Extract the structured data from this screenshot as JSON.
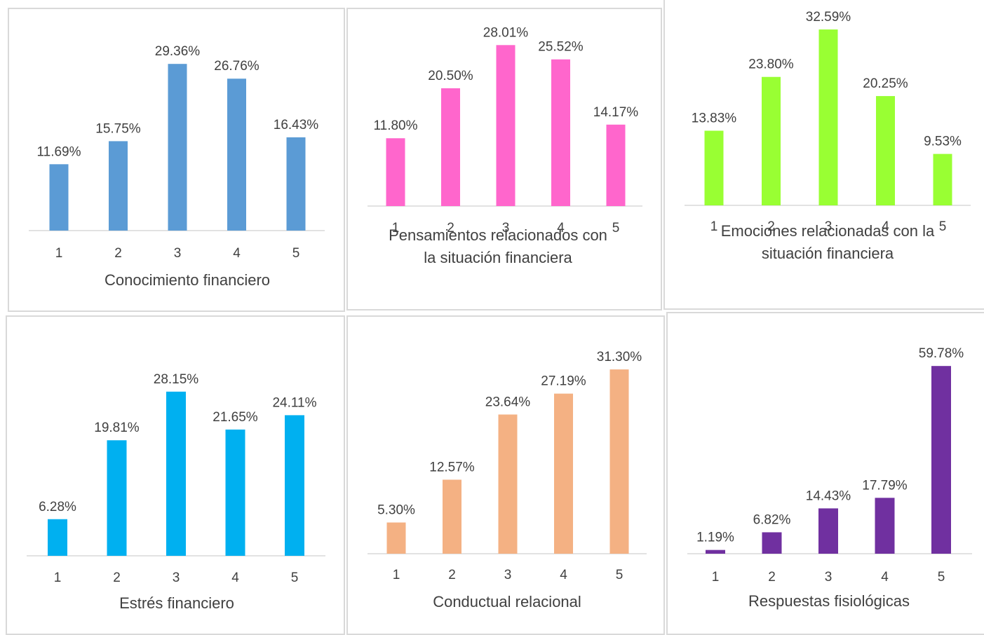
{
  "chart_data": [
    {
      "type": "bar",
      "xlabel": "Conocimiento financiero",
      "xlabel_lines": [
        "Conocimiento financiero"
      ],
      "categories": [
        "1",
        "2",
        "3",
        "4",
        "5"
      ],
      "values": [
        11.69,
        15.75,
        29.36,
        26.76,
        16.43
      ],
      "data_labels": [
        "11.69%",
        "15.75%",
        "29.36%",
        "26.76%",
        "16.43%"
      ],
      "color": "#5b9bd5",
      "grid": false,
      "legend": "none"
    },
    {
      "type": "bar",
      "xlabel": "Pensamientos relacionados con la situación financiera",
      "xlabel_lines": [
        "Pensamientos relacionados con",
        "la situación financiera"
      ],
      "categories": [
        "1",
        "2",
        "3",
        "4",
        "5"
      ],
      "values": [
        11.8,
        20.5,
        28.01,
        25.52,
        14.17
      ],
      "data_labels": [
        "11.80%",
        "20.50%",
        "28.01%",
        "25.52%",
        "14.17%"
      ],
      "color": "#ff66cc",
      "grid": false,
      "legend": "none"
    },
    {
      "type": "bar",
      "xlabel": "Emociones relacionadas con la situación financiera",
      "xlabel_lines": [
        "Emociones relacionadas con la",
        "situación financiera"
      ],
      "categories": [
        "1",
        "2",
        "3",
        "4",
        "5"
      ],
      "values": [
        13.83,
        23.8,
        32.59,
        20.25,
        9.53
      ],
      "data_labels": [
        "13.83%",
        "23.80%",
        "32.59%",
        "20.25%",
        "9.53%"
      ],
      "color": "#99ff33",
      "grid": false,
      "legend": "none"
    },
    {
      "type": "bar",
      "xlabel": "Estrés financiero",
      "xlabel_lines": [
        "Estrés financiero"
      ],
      "categories": [
        "1",
        "2",
        "3",
        "4",
        "5"
      ],
      "values": [
        6.28,
        19.81,
        28.15,
        21.65,
        24.11
      ],
      "data_labels": [
        "6.28%",
        "19.81%",
        "28.15%",
        "21.65%",
        "24.11%"
      ],
      "color": "#00b0f0",
      "grid": false,
      "legend": "none"
    },
    {
      "type": "bar",
      "xlabel": "Conductual relacional",
      "xlabel_lines": [
        "Conductual relacional"
      ],
      "categories": [
        "1",
        "2",
        "3",
        "4",
        "5"
      ],
      "values": [
        5.3,
        12.57,
        23.64,
        27.19,
        31.3
      ],
      "data_labels": [
        "5.30%",
        "12.57%",
        "23.64%",
        "27.19%",
        "31.30%"
      ],
      "color": "#f4b183",
      "grid": false,
      "legend": "none"
    },
    {
      "type": "bar",
      "xlabel": "Respuestas fisiológicas",
      "xlabel_lines": [
        "Respuestas fisiológicas"
      ],
      "categories": [
        "1",
        "2",
        "3",
        "4",
        "5"
      ],
      "values": [
        1.19,
        6.82,
        14.43,
        17.79,
        59.78
      ],
      "data_labels": [
        "1.19%",
        "6.82%",
        "14.43%",
        "17.79%",
        "59.78%"
      ],
      "color": "#7030a0",
      "grid": false,
      "legend": "none"
    }
  ]
}
